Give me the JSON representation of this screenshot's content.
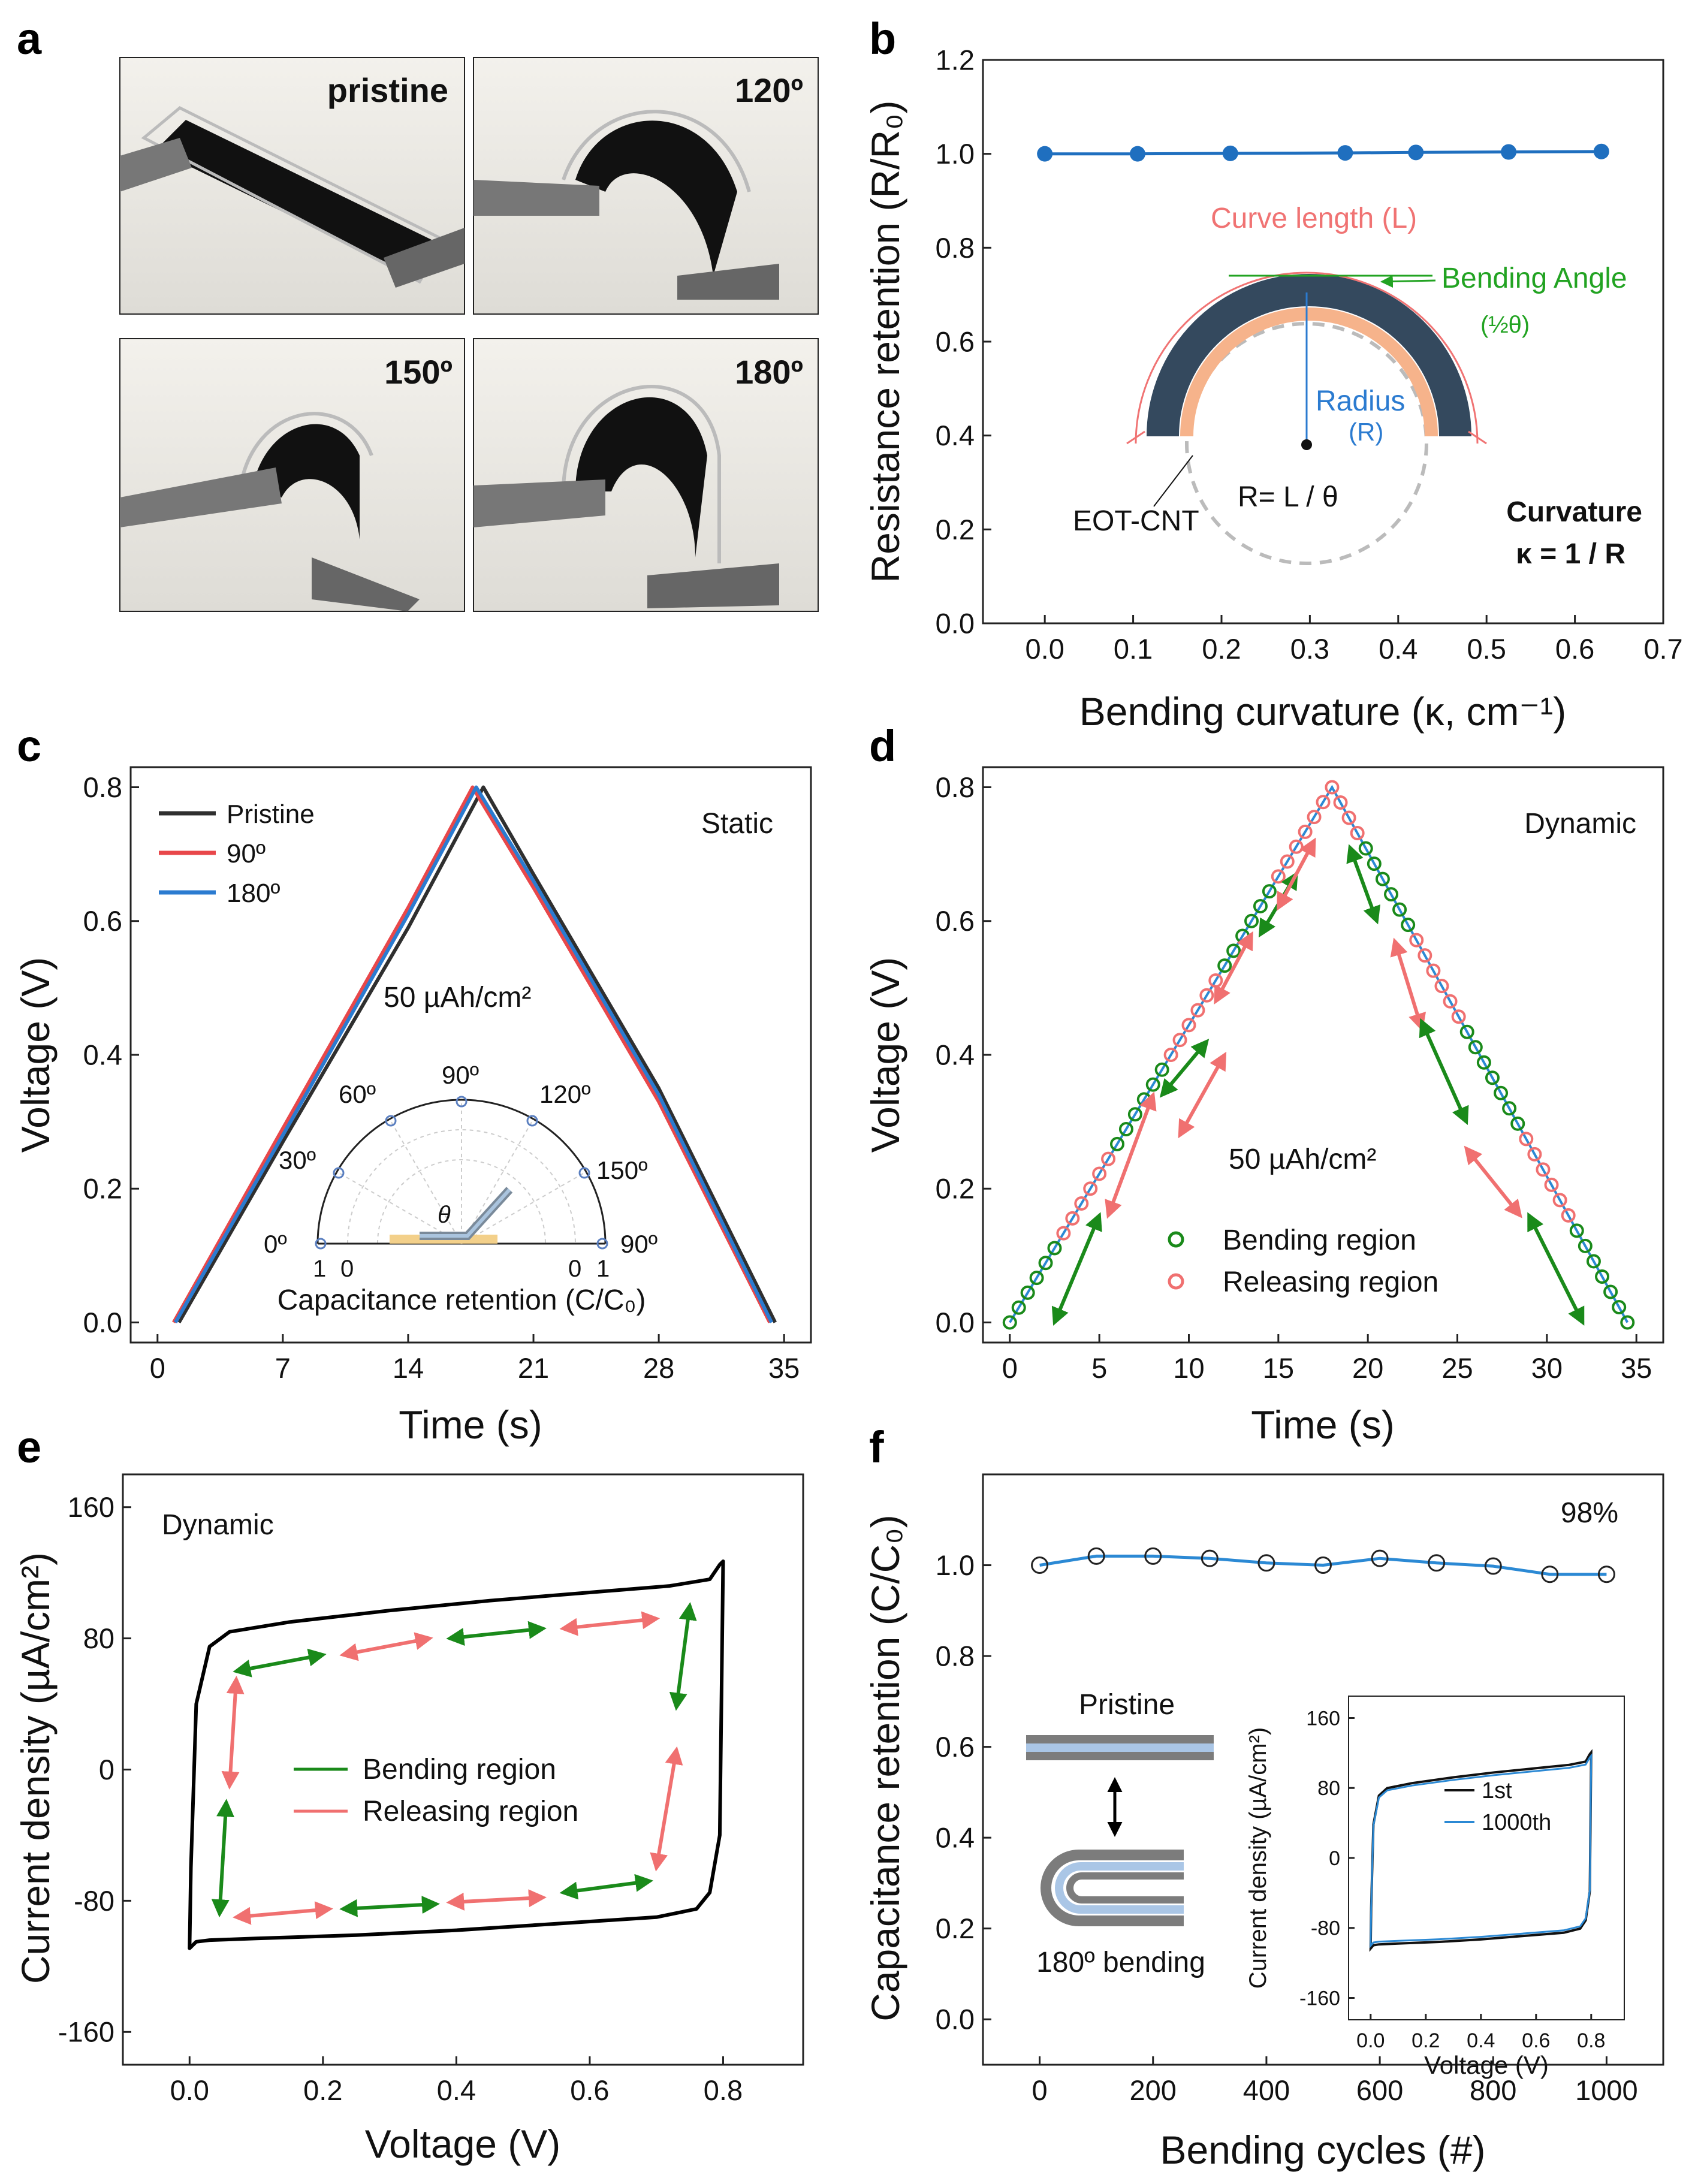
{
  "figure": {
    "panel_labels": {
      "a": "a",
      "b": "b",
      "c": "c",
      "d": "d",
      "e": "e",
      "f": "f"
    }
  },
  "panel_a": {
    "photos": [
      {
        "label": "pristine"
      },
      {
        "label": "120º"
      },
      {
        "label": "150º"
      },
      {
        "label": "180º"
      }
    ]
  },
  "colors": {
    "dark": "#2f2f2f",
    "red": "#e8474a",
    "blue": "#2b7bd0",
    "green": "#1a8a1a",
    "salmon": "#f07070",
    "navy": "#34495e",
    "orange": "#f6b38b",
    "curve_red": "#f07373",
    "bend_green": "#22a322"
  },
  "chart_data": [
    {
      "panel": "b",
      "type": "line",
      "x": [
        0.0,
        0.105,
        0.21,
        0.34,
        0.42,
        0.525,
        0.63
      ],
      "y": [
        1.0,
        1.0,
        1.001,
        1.002,
        1.003,
        1.004,
        1.005
      ],
      "xlabel": "Bending curvature (κ, cm⁻¹)",
      "ylabel": "Resistance retention (R/R₀)",
      "xlim": [
        -0.07,
        0.7
      ],
      "ylim": [
        0,
        1.2
      ],
      "xticks": [
        "0.0",
        "0.1",
        "0.2",
        "0.3",
        "0.4",
        "0.5",
        "0.6",
        "0.7"
      ],
      "yticks": [
        "0.0",
        "0.2",
        "0.4",
        "0.6",
        "0.8",
        "1.0",
        "1.2"
      ],
      "annotations": {
        "curve_length": "Curve length (L)",
        "bending_angle": "Bending Angle",
        "half_theta": "(½θ)",
        "radius": "Radius",
        "radius_sym": "(R)",
        "formula": "R= L / θ",
        "material": "EOT-CNT",
        "curvature_title": "Curvature",
        "curvature_formula": "κ = 1 / R"
      }
    },
    {
      "panel": "c",
      "type": "line",
      "title": "Static",
      "series": [
        {
          "name": "Pristine",
          "x": [
            1.2,
            7,
            14,
            18.2,
            21,
            28,
            34.5
          ],
          "y": [
            0,
            0.27,
            0.59,
            0.8,
            0.67,
            0.35,
            0
          ]
        },
        {
          "name": "90º",
          "x": [
            0.9,
            7,
            14,
            17.6,
            21,
            28,
            34.2
          ],
          "y": [
            0,
            0.29,
            0.62,
            0.8,
            0.65,
            0.33,
            0
          ]
        },
        {
          "name": "180º",
          "x": [
            1.0,
            7,
            14,
            17.8,
            21,
            28,
            34.3
          ],
          "y": [
            0,
            0.28,
            0.61,
            0.8,
            0.66,
            0.34,
            0
          ]
        }
      ],
      "xlabel": "Time (s)",
      "ylabel": "Voltage (V)",
      "xlim": [
        -1.5,
        36.5
      ],
      "ylim": [
        -0.03,
        0.83
      ],
      "xticks": [
        "0",
        "7",
        "14",
        "21",
        "28",
        "35"
      ],
      "yticks": [
        "0.0",
        "0.2",
        "0.4",
        "0.6",
        "0.8"
      ],
      "annotation": "50 µAh/cm²",
      "inset": {
        "angles": [
          "0º",
          "30º",
          "60º",
          "90º",
          "120º",
          "150º",
          "90º"
        ],
        "axis_ticks": [
          "1",
          "0",
          "0",
          "1"
        ],
        "theta": "θ",
        "xlabel": "Capacitance retention (C/C₀)"
      }
    },
    {
      "panel": "d",
      "type": "scatter",
      "title": "Dynamic",
      "t_start": 0,
      "t_peak": 18,
      "t_end": 34.5,
      "v_peak": 0.8,
      "n_points_up": 36,
      "n_points_down": 35,
      "series": [
        {
          "name": "Bending region"
        },
        {
          "name": "Releasing region"
        }
      ],
      "xlabel": "Time (s)",
      "ylabel": "Voltage (V)",
      "xlim": [
        -1.5,
        36.5
      ],
      "ylim": [
        -0.03,
        0.83
      ],
      "xticks": [
        "0",
        "5",
        "10",
        "15",
        "20",
        "25",
        "30",
        "35"
      ],
      "yticks": [
        "0.0",
        "0.2",
        "0.4",
        "0.6",
        "0.8"
      ],
      "annotation": "50 µAh/cm²"
    },
    {
      "panel": "e",
      "type": "line",
      "title": "Dynamic",
      "xlabel": "Voltage (V)",
      "ylabel": "Current density (µA/cm²)",
      "xlim": [
        -0.1,
        0.92
      ],
      "ylim": [
        -180,
        180
      ],
      "xticks": [
        "0.0",
        "0.2",
        "0.4",
        "0.6",
        "0.8"
      ],
      "yticks": [
        "160",
        "80",
        "0",
        "-80",
        "-160"
      ],
      "legend": [
        "Bending region",
        "Releasing region"
      ],
      "cycle": {
        "x": [
          0.0,
          0.002,
          0.01,
          0.03,
          0.06,
          0.15,
          0.3,
          0.45,
          0.6,
          0.72,
          0.78,
          0.795,
          0.8,
          0.795,
          0.78,
          0.76,
          0.7,
          0.55,
          0.4,
          0.25,
          0.1,
          0.03,
          0.01,
          0.0
        ],
        "y": [
          -109,
          -60,
          40,
          75,
          84,
          90,
          97,
          103,
          108,
          112,
          116,
          125,
          127,
          -40,
          -75,
          -85,
          -90,
          -94,
          -98,
          -101,
          -103,
          -104,
          -105,
          -109
        ]
      }
    },
    {
      "panel": "f",
      "type": "line",
      "x": [
        0,
        100,
        200,
        300,
        400,
        500,
        600,
        700,
        800,
        900,
        1000
      ],
      "y": [
        1.0,
        1.02,
        1.02,
        1.015,
        1.005,
        1.0,
        1.015,
        1.005,
        0.998,
        0.98,
        0.98
      ],
      "xlabel": "Bending cycles (#)",
      "ylabel": "Capacitance retention (C/C₀)",
      "xlim": [
        -100,
        1100
      ],
      "ylim": [
        -0.1,
        1.2
      ],
      "xticks": [
        "0",
        "200",
        "400",
        "600",
        "800",
        "1000"
      ],
      "yticks": [
        "0.0",
        "0.2",
        "0.4",
        "0.6",
        "0.8",
        "1.0"
      ],
      "annotation": "98%",
      "schematic": {
        "top": "Pristine",
        "bottom": "180º bending"
      },
      "inset": {
        "xlabel": "Voltage (V)",
        "ylabel": "Current density (µA/cm²)",
        "xticks": [
          "0.0",
          "0.2",
          "0.4",
          "0.6",
          "0.8"
        ],
        "yticks": [
          "160",
          "80",
          "0",
          "-80",
          "-160"
        ],
        "legend": [
          "1st",
          "1000th"
        ]
      }
    }
  ]
}
